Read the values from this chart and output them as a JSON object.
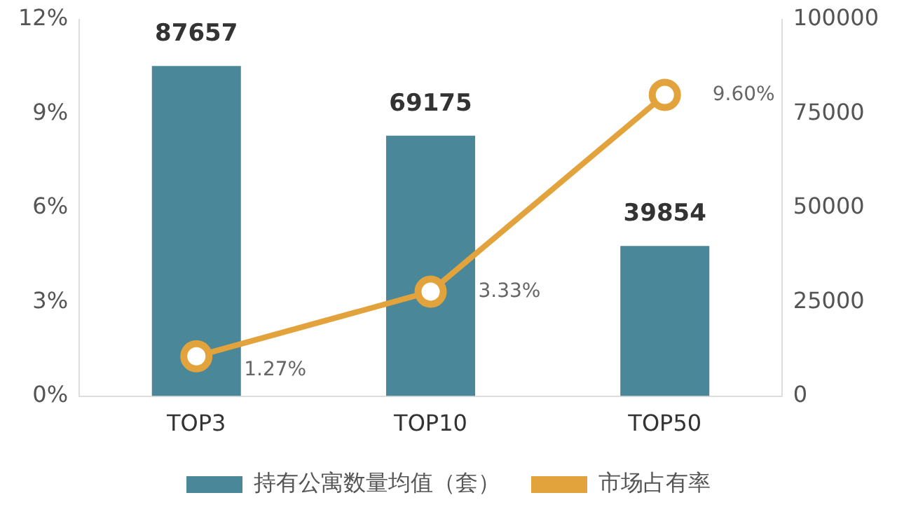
{
  "chart_data": {
    "type": "bar",
    "categories": [
      "TOP3",
      "TOP10",
      "TOP50"
    ],
    "series": [
      {
        "name": "持有公寓数量均值（套）",
        "axis": "y2",
        "color": "#4a8799",
        "values": [
          87657,
          69175,
          39854
        ],
        "value_labels": [
          "87657",
          "69175",
          "39854"
        ]
      },
      {
        "name": "市场占有率",
        "type": "line",
        "axis": "y",
        "color": "#e3a33c",
        "values": [
          1.27,
          3.33,
          9.6
        ],
        "value_labels": [
          "1.27%",
          "3.33%",
          "9.60%"
        ]
      }
    ],
    "ylim": [
      0,
      12
    ],
    "yticks": [
      {
        "value": 0,
        "label": "0%"
      },
      {
        "value": 3,
        "label": "3%"
      },
      {
        "value": 6,
        "label": "6%"
      },
      {
        "value": 9,
        "label": "9%"
      },
      {
        "value": 12,
        "label": "12%"
      }
    ],
    "y2lim": [
      0,
      100000
    ],
    "y2ticks": [
      0,
      25000,
      50000,
      75000,
      100000
    ],
    "grid": false,
    "legend": "bottom",
    "marker": "circle",
    "line_style": "solid"
  }
}
